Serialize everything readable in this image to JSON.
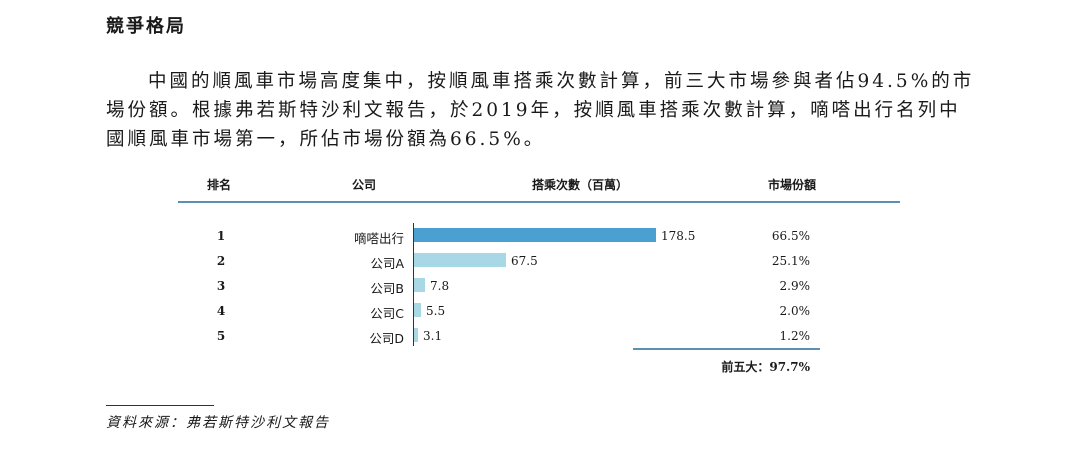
{
  "heading": "競爭格局",
  "paragraph": {
    "line1": "中國的順風車市場高度集中，按順風車搭乘次數計算，前三大市場參與者佔94.5%的市",
    "line2": "場份額。根據弗若斯特沙利文報告，於2019年，按順風車搭乘次數計算，嘀嗒出行名列中",
    "line3": "國順風車市場第一，所佔市場份額為66.5%。"
  },
  "table": {
    "headers": {
      "rank": "排名",
      "company": "公司",
      "rides": "搭乘次數（百萬）",
      "share": "市場份額"
    },
    "rows": [
      {
        "rank": "1",
        "company": "嘀嗒出行",
        "value": "178.5",
        "share": "66.5%"
      },
      {
        "rank": "2",
        "company": "公司A",
        "value": "67.5",
        "share": "25.1%"
      },
      {
        "rank": "3",
        "company": "公司B",
        "value": "7.8",
        "share": "2.9%"
      },
      {
        "rank": "4",
        "company": "公司C",
        "value": "5.5",
        "share": "2.0%"
      },
      {
        "rank": "5",
        "company": "公司D",
        "value": "3.1",
        "share": "1.2%"
      }
    ],
    "total": "前五大：97.7%"
  },
  "chart_data": {
    "type": "bar",
    "categories": [
      "嘀嗒出行",
      "公司A",
      "公司B",
      "公司C",
      "公司D"
    ],
    "values": [
      178.5,
      67.5,
      7.8,
      5.5,
      3.1
    ],
    "colors": [
      "#4aa0d0",
      "#a8d8e6",
      "#a8d8e6",
      "#a8d8e6",
      "#a8d8e6"
    ]
  },
  "source": "資料來源：弗若斯特沙利文報告"
}
